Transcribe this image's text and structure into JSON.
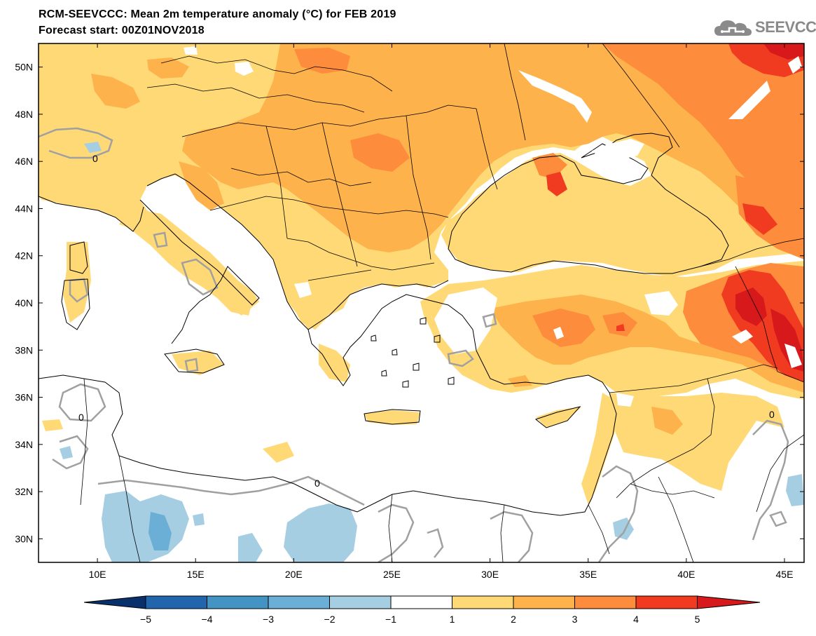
{
  "header": {
    "title": "RCM-SEEVCCC: Mean 2m temperature anomaly (°C) for FEB 2019",
    "subtitle": "Forecast start: 00Z01NOV2018"
  },
  "logo": {
    "text": "SEEVCCC",
    "icon": "cloud-icon"
  },
  "map": {
    "projection": "lat-lon",
    "lon_range": [
      7,
      46
    ],
    "lat_range": [
      29,
      51
    ],
    "lat_ticks": [
      {
        "value": 30,
        "label": "30N"
      },
      {
        "value": 32,
        "label": "32N"
      },
      {
        "value": 34,
        "label": "34N"
      },
      {
        "value": 36,
        "label": "36N"
      },
      {
        "value": 38,
        "label": "38N"
      },
      {
        "value": 40,
        "label": "40N"
      },
      {
        "value": 42,
        "label": "42N"
      },
      {
        "value": 44,
        "label": "44N"
      },
      {
        "value": 46,
        "label": "46N"
      },
      {
        "value": 48,
        "label": "48N"
      },
      {
        "value": 50,
        "label": "50N"
      }
    ],
    "lon_ticks": [
      {
        "value": 10,
        "label": "10E"
      },
      {
        "value": 15,
        "label": "15E"
      },
      {
        "value": 20,
        "label": "20E"
      },
      {
        "value": 25,
        "label": "25E"
      },
      {
        "value": 30,
        "label": "30E"
      },
      {
        "value": 35,
        "label": "35E"
      },
      {
        "value": 40,
        "label": "40E"
      },
      {
        "value": 45,
        "label": "45E"
      }
    ],
    "zero_contour_label": "0",
    "colors": {
      "sea": "#ffffff",
      "coast": "#000000",
      "zero_contour": "#a0a0a0"
    }
  },
  "colorbar": {
    "levels": [
      "-5",
      "-4",
      "-3",
      "-2",
      "-1",
      "1",
      "2",
      "3",
      "4",
      "5"
    ],
    "colors": [
      "#08306b",
      "#2166ac",
      "#4393c3",
      "#6baed6",
      "#a6cee3",
      "#ffffff",
      "#fed976",
      "#feb24c",
      "#fd8d3c",
      "#f03b20",
      "#d7191c"
    ]
  }
}
